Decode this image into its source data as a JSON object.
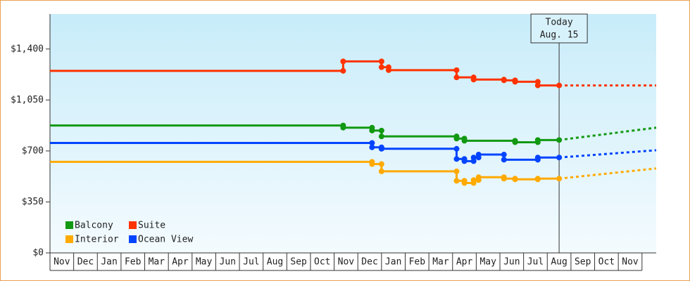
{
  "chart_data": {
    "type": "step-line",
    "xlim": [
      0,
      25.6
    ],
    "xticks": [
      {
        "value": 0,
        "label": "Nov"
      },
      {
        "value": 1,
        "label": "Dec"
      },
      {
        "value": 2,
        "label": "Jan"
      },
      {
        "value": 3,
        "label": "Feb"
      },
      {
        "value": 4,
        "label": "Mar"
      },
      {
        "value": 5,
        "label": "Apr"
      },
      {
        "value": 6,
        "label": "May"
      },
      {
        "value": 7,
        "label": "Jun"
      },
      {
        "value": 8,
        "label": "Jul"
      },
      {
        "value": 9,
        "label": "Aug"
      },
      {
        "value": 10,
        "label": "Sep"
      },
      {
        "value": 11,
        "label": "Oct"
      },
      {
        "value": 12,
        "label": "Nov"
      },
      {
        "value": 13,
        "label": "Dec"
      },
      {
        "value": 14,
        "label": "Jan"
      },
      {
        "value": 15,
        "label": "Feb"
      },
      {
        "value": 16,
        "label": "Mar"
      },
      {
        "value": 17,
        "label": "Apr"
      },
      {
        "value": 18,
        "label": "May"
      },
      {
        "value": 19,
        "label": "Jun"
      },
      {
        "value": 20,
        "label": "Jul"
      },
      {
        "value": 21,
        "label": "Aug"
      },
      {
        "value": 22,
        "label": "Sep"
      },
      {
        "value": 23,
        "label": "Oct"
      },
      {
        "value": 24,
        "label": "Nov"
      }
    ],
    "ylim": [
      0,
      1640
    ],
    "yticks": [
      {
        "value": 0,
        "label": "$0"
      },
      {
        "value": 350,
        "label": "$350"
      },
      {
        "value": 700,
        "label": "$700"
      },
      {
        "value": 1050,
        "label": "$1,050"
      },
      {
        "value": 1400,
        "label": "$1,400"
      }
    ],
    "annotation": {
      "x": 21.5,
      "lines": [
        "Today",
        "Aug. 15"
      ]
    },
    "legend": "bottom-left",
    "series": [
      {
        "name": "Balcony",
        "color": "#119911",
        "x": [
          0,
          12.38,
          13.6,
          14.0,
          17.17,
          17.5,
          19.64,
          20.6,
          21.5
        ],
        "values": [
          875,
          860,
          840,
          800,
          785,
          770,
          760,
          775,
          775
        ],
        "forecast": {
          "x": [
            21.5,
            25.6
          ],
          "values": [
            775,
            860
          ]
        }
      },
      {
        "name": "Suite",
        "color": "#ff3300",
        "x": [
          0,
          12.38,
          14.0,
          14.3,
          17.17,
          17.89,
          19.17,
          19.64,
          20.6,
          21.5
        ],
        "values": [
          1250,
          1315,
          1275,
          1255,
          1205,
          1190,
          1185,
          1175,
          1150,
          1150
        ],
        "forecast": {
          "x": [
            21.5,
            25.6
          ],
          "values": [
            1150,
            1150
          ]
        }
      },
      {
        "name": "Interior",
        "color": "#ffaa00",
        "x": [
          0,
          13.6,
          14.0,
          17.17,
          17.5,
          17.89,
          18.1,
          19.17,
          19.64,
          20.6,
          21.5
        ],
        "values": [
          625,
          610,
          560,
          495,
          480,
          500,
          520,
          510,
          505,
          510,
          510
        ],
        "forecast": {
          "x": [
            21.5,
            25.6
          ],
          "values": [
            510,
            580
          ]
        }
      },
      {
        "name": "Ocean View",
        "color": "#0044ff",
        "x": [
          0,
          13.6,
          14.0,
          17.17,
          17.5,
          17.89,
          18.1,
          19.17,
          20.6,
          21.5
        ],
        "values": [
          755,
          725,
          715,
          645,
          630,
          655,
          675,
          640,
          655,
          655
        ],
        "forecast": {
          "x": [
            21.5,
            25.6
          ],
          "values": [
            655,
            705
          ]
        }
      }
    ]
  }
}
